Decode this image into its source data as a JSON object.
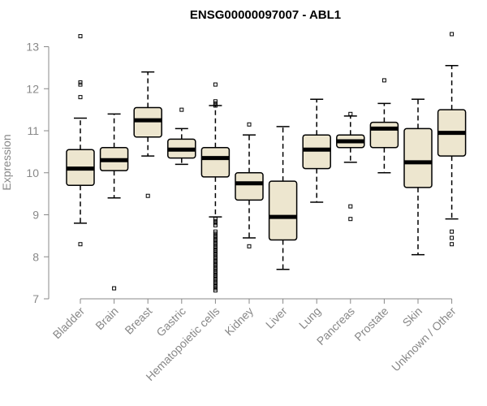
{
  "chart_data": {
    "type": "boxplot",
    "title": "ENSG00000097007 - ABL1",
    "xlabel": "",
    "ylabel": "Expression",
    "ylim": [
      7,
      13.3
    ],
    "yticks": [
      7,
      8,
      9,
      10,
      11,
      12,
      13
    ],
    "box_fill": "#ede6cf",
    "categories": [
      "Bladder",
      "Brain",
      "Breast",
      "Gastric",
      "Hematopoietic cells",
      "Kidney",
      "Liver",
      "Lung",
      "Pancreas",
      "Prostate",
      "Skin",
      "Unknown / Other"
    ],
    "boxes": [
      {
        "name": "Bladder",
        "lower_whisker": 8.8,
        "q1": 9.7,
        "median": 10.1,
        "q3": 10.55,
        "upper_whisker": 11.3,
        "outliers": [
          13.25,
          12.15,
          12.1,
          11.8,
          8.3
        ]
      },
      {
        "name": "Brain",
        "lower_whisker": 9.4,
        "q1": 10.05,
        "median": 10.3,
        "q3": 10.6,
        "upper_whisker": 11.4,
        "outliers": [
          7.25
        ]
      },
      {
        "name": "Breast",
        "lower_whisker": 10.4,
        "q1": 10.85,
        "median": 11.25,
        "q3": 11.55,
        "upper_whisker": 12.4,
        "outliers": [
          9.45
        ]
      },
      {
        "name": "Gastric",
        "lower_whisker": 10.2,
        "q1": 10.35,
        "median": 10.55,
        "q3": 10.8,
        "upper_whisker": 11.05,
        "outliers": [
          11.5
        ]
      },
      {
        "name": "Hematopoietic cells",
        "lower_whisker": 8.95,
        "q1": 9.9,
        "median": 10.35,
        "q3": 10.6,
        "upper_whisker": 11.6,
        "outliers": [
          12.1,
          11.7,
          11.65,
          11.6,
          8.9,
          8.85,
          8.8,
          8.75,
          8.6,
          8.55,
          8.5,
          8.45,
          8.4,
          8.35,
          8.3,
          8.25,
          8.2,
          8.15,
          8.1,
          8.05,
          8.0,
          7.95,
          7.9,
          7.85,
          7.8,
          7.75,
          7.7,
          7.65,
          7.6,
          7.55,
          7.5,
          7.45,
          7.4,
          7.35,
          7.3,
          7.25,
          7.2
        ]
      },
      {
        "name": "Kidney",
        "lower_whisker": 8.45,
        "q1": 9.35,
        "median": 9.75,
        "q3": 10.0,
        "upper_whisker": 10.9,
        "outliers": [
          11.15,
          8.25
        ]
      },
      {
        "name": "Liver",
        "lower_whisker": 7.7,
        "q1": 8.4,
        "median": 8.95,
        "q3": 9.8,
        "upper_whisker": 11.1,
        "outliers": []
      },
      {
        "name": "Lung",
        "lower_whisker": 9.3,
        "q1": 10.1,
        "median": 10.55,
        "q3": 10.9,
        "upper_whisker": 11.75,
        "outliers": []
      },
      {
        "name": "Pancreas",
        "lower_whisker": 10.25,
        "q1": 10.6,
        "median": 10.75,
        "q3": 10.9,
        "upper_whisker": 11.35,
        "outliers": [
          11.4,
          9.2,
          8.9
        ]
      },
      {
        "name": "Prostate",
        "lower_whisker": 10.0,
        "q1": 10.6,
        "median": 11.05,
        "q3": 11.2,
        "upper_whisker": 11.65,
        "outliers": [
          12.2
        ]
      },
      {
        "name": "Skin",
        "lower_whisker": 8.05,
        "q1": 9.65,
        "median": 10.25,
        "q3": 11.05,
        "upper_whisker": 11.75,
        "outliers": []
      },
      {
        "name": "Unknown / Other",
        "lower_whisker": 8.9,
        "q1": 10.4,
        "median": 10.95,
        "q3": 11.5,
        "upper_whisker": 12.55,
        "outliers": [
          13.3,
          8.6,
          8.45,
          8.3
        ]
      }
    ]
  }
}
